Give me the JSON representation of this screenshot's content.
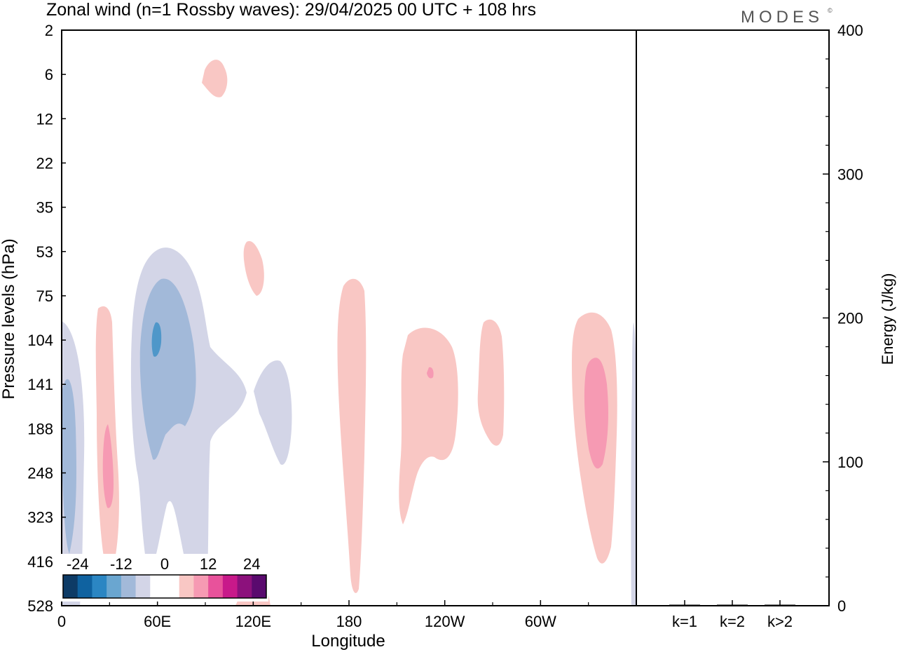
{
  "title": "Zonal wind (n=1 Rossby waves):  29/04/2025  00 UTC  + 108 hrs",
  "logo": "MODES",
  "logo_mark": "©",
  "colors": {
    "frame": "#000000",
    "neg1": "#d3d5e7",
    "neg2": "#a2b9d9",
    "neg3": "#4f97c9",
    "pos1": "#f9c7c4",
    "pos2": "#f69ab3",
    "pos3": "#e8529b"
  },
  "chart_data": [
    {
      "type": "heatmap",
      "title": "Zonal wind (n=1 Rossby waves):  29/04/2025  00 UTC  + 108 hrs",
      "xlabel": "Longitude",
      "ylabel": "Pressure levels (hPa)",
      "x_ticks": [
        "0",
        "60E",
        "120E",
        "180",
        "120W",
        "60W"
      ],
      "y_ticks": [
        "2",
        "6",
        "12",
        "22",
        "35",
        "53",
        "75",
        "104",
        "141",
        "188",
        "248",
        "323",
        "416",
        "528"
      ],
      "colorbar": {
        "tick_labels": [
          "-24",
          "-12",
          "0",
          "12",
          "24"
        ],
        "colors": [
          "#0d3b66",
          "#0f62a0",
          "#2b86c3",
          "#6aa6d0",
          "#a2b9d9",
          "#d3d5e7",
          "#ffffff",
          "#ffffff",
          "#f9c7c4",
          "#f69ab3",
          "#e8529b",
          "#c8198a",
          "#8c117c",
          "#5a0a6e"
        ]
      },
      "features": [
        {
          "sign": "negative",
          "level": 1,
          "center_lon": 2,
          "center_level": "248"
        },
        {
          "sign": "negative",
          "level": 2,
          "center_lon": 3,
          "center_level": "248"
        },
        {
          "sign": "negative",
          "level": 1,
          "center_lon": 60,
          "center_level": "141"
        },
        {
          "sign": "negative",
          "level": 2,
          "center_lon": 60,
          "center_level": "141"
        },
        {
          "sign": "negative",
          "level": 3,
          "center_lon": 58,
          "center_level": "104"
        },
        {
          "sign": "negative",
          "level": 1,
          "center_lon": 131,
          "center_level": "188"
        },
        {
          "sign": "positive",
          "level": 1,
          "center_lon": 29,
          "center_level": "248"
        },
        {
          "sign": "positive",
          "level": 2,
          "center_lon": 29,
          "center_level": "248"
        },
        {
          "sign": "positive",
          "level": 1,
          "center_lon": 95,
          "center_level": "6"
        },
        {
          "sign": "positive",
          "level": 1,
          "center_lon": 122,
          "center_level": "53"
        },
        {
          "sign": "positive",
          "level": 1,
          "center_lon": 181,
          "center_level": "141"
        },
        {
          "sign": "positive",
          "level": 1,
          "center_lon": 240,
          "center_level": "188"
        },
        {
          "sign": "positive",
          "level": 2,
          "center_lon": 240,
          "center_level": "141"
        },
        {
          "sign": "positive",
          "level": 1,
          "center_lon": 265,
          "center_level": "141"
        },
        {
          "sign": "positive",
          "level": 1,
          "center_lon": 333,
          "center_level": "188"
        },
        {
          "sign": "positive",
          "level": 2,
          "center_lon": 333,
          "center_level": "188"
        }
      ]
    },
    {
      "type": "bar",
      "ylabel": "Energy (J/kg)",
      "categories": [
        "k=1",
        "k=2",
        "k>2"
      ],
      "values": [
        0.5,
        0.3,
        0.3
      ],
      "ylim": [
        0,
        400
      ],
      "y_ticks": [
        "0",
        "100",
        "200",
        "300",
        "400"
      ]
    }
  ]
}
